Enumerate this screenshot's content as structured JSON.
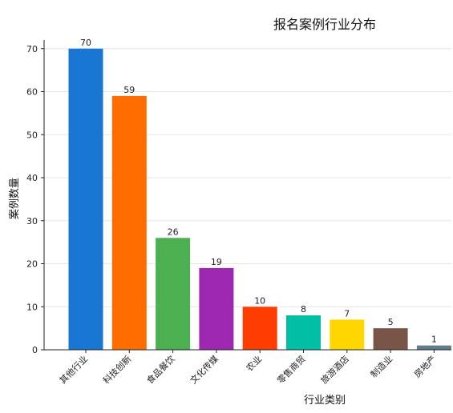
{
  "chart_data": {
    "type": "bar",
    "title": "报名案例行业分布",
    "xlabel": "行业类别",
    "ylabel": "案例数量",
    "categories": [
      "其他行业",
      "科技创新",
      "食品餐饮",
      "文化传媒",
      "农业",
      "零售商贸",
      "旅游酒店",
      "制造业",
      "房地产"
    ],
    "values": [
      70,
      59,
      26,
      19,
      10,
      8,
      7,
      5,
      1
    ],
    "colors": [
      "#1976d2",
      "#ff6d00",
      "#4caf50",
      "#9c27b0",
      "#ff3d00",
      "#00bfa5",
      "#ffd600",
      "#795548",
      "#607d8b"
    ],
    "ylim": [
      0,
      72
    ],
    "yticks": [
      0,
      10,
      20,
      30,
      40,
      50,
      60,
      70
    ],
    "grid": true,
    "data_labels": true
  }
}
